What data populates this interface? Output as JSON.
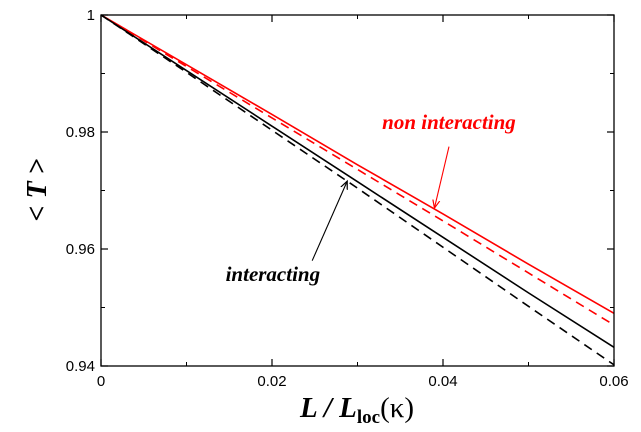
{
  "chart_data": {
    "type": "line",
    "xlabel": {
      "main": "L / L",
      "sub": "loc",
      "tail": "(κ)"
    },
    "ylabel": "< T >",
    "xlim": [
      0,
      0.06
    ],
    "ylim": [
      0.94,
      1.0
    ],
    "x_ticks": [
      "0",
      "0.02",
      "0.04",
      "0.06"
    ],
    "x_tick_values": [
      0,
      0.02,
      0.04,
      0.06
    ],
    "y_ticks": [
      "0.94",
      "0.96",
      "0.98",
      "1"
    ],
    "y_tick_values": [
      0.94,
      0.96,
      0.98,
      1.0
    ],
    "grid": false,
    "series": [
      {
        "color": "#ff0000",
        "style": "solid",
        "x": [
          0,
          0.01,
          0.02,
          0.03,
          0.04,
          0.05,
          0.06
        ],
        "y": [
          1.0,
          0.9915,
          0.983,
          0.9744,
          0.966,
          0.9574,
          0.949
        ]
      },
      {
        "color": "#ff0000",
        "style": "dashed",
        "x": [
          0,
          0.01,
          0.02,
          0.03,
          0.04,
          0.05,
          0.06
        ],
        "y": [
          1.0,
          0.9912,
          0.9824,
          0.9736,
          0.9648,
          0.9559,
          0.947
        ]
      },
      {
        "color": "#000000",
        "style": "solid",
        "x": [
          0,
          0.01,
          0.02,
          0.03,
          0.04,
          0.05,
          0.06
        ],
        "y": [
          1.0,
          0.9905,
          0.981,
          0.9715,
          0.962,
          0.9525,
          0.9432
        ]
      },
      {
        "color": "#000000",
        "style": "dashed",
        "x": [
          0,
          0.01,
          0.02,
          0.03,
          0.04,
          0.05,
          0.06
        ],
        "y": [
          1.0,
          0.9902,
          0.9803,
          0.9704,
          0.9603,
          0.9502,
          0.9402
        ]
      }
    ],
    "annotations": [
      {
        "text": "non interacting",
        "color": "#ff0000",
        "text_at": [
          0.0407,
          0.9805
        ],
        "arrow_from": [
          0.0407,
          0.9775
        ],
        "arrow_to": [
          0.039,
          0.967
        ]
      },
      {
        "text": "interacting",
        "color": "#000000",
        "text_at": [
          0.0201,
          0.9545
        ],
        "arrow_from": [
          0.0247,
          0.958
        ],
        "arrow_to": [
          0.0288,
          0.9716
        ]
      }
    ]
  }
}
